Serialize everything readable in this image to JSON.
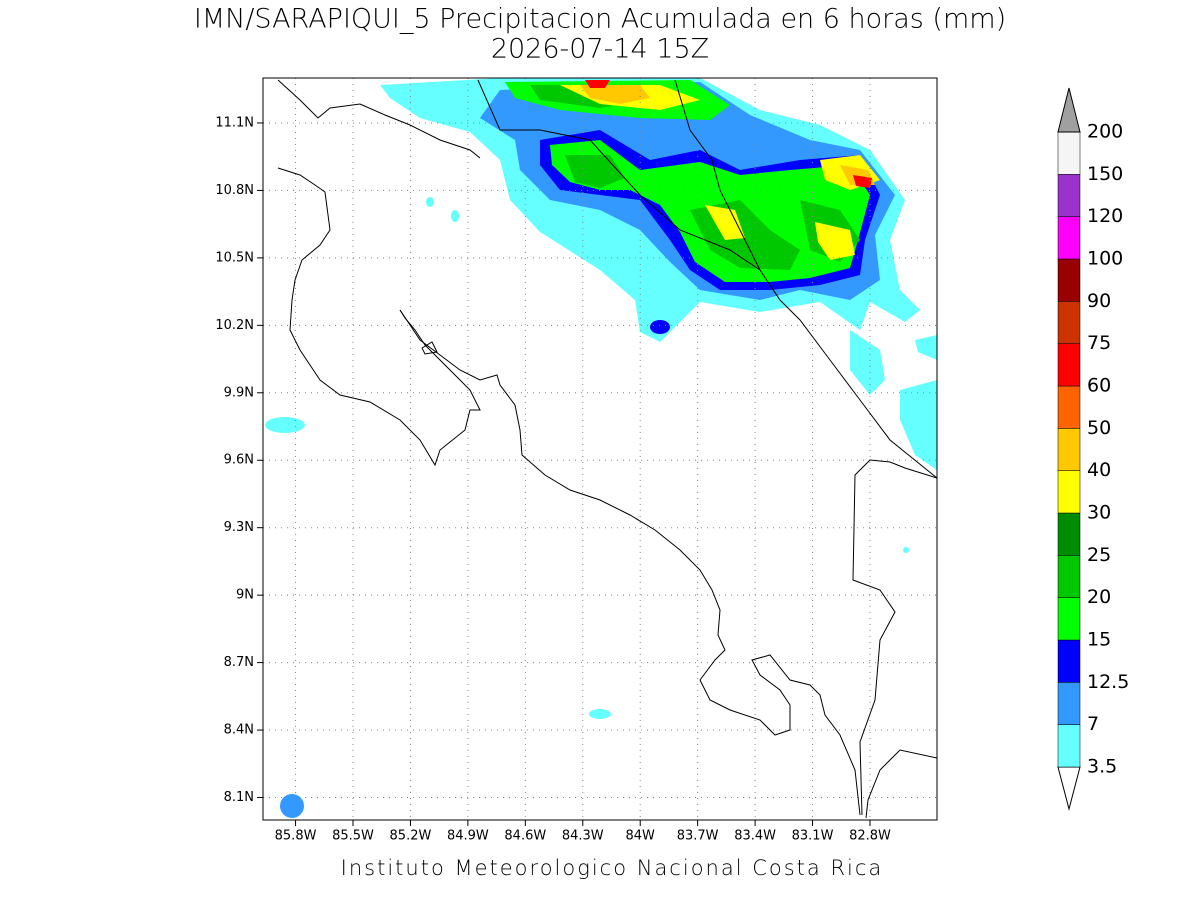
{
  "map": {
    "title": "IMN/SARAPIQUI_5 Precipitacion Acumulada en 6 horas (mm)",
    "subtitle": "2026-07-14 15Z",
    "footer": "Instituto Meteorologico Nacional Costa Rica",
    "xlim": [
      -85.97,
      -82.45
    ],
    "ylim": [
      8.0,
      11.3
    ],
    "grid": true,
    "xticks": [
      {
        "value": -85.8,
        "label": "85.8W"
      },
      {
        "value": -85.5,
        "label": "85.5W"
      },
      {
        "value": -85.2,
        "label": "85.2W"
      },
      {
        "value": -84.9,
        "label": "84.9W"
      },
      {
        "value": -84.6,
        "label": "84.6W"
      },
      {
        "value": -84.3,
        "label": "84.3W"
      },
      {
        "value": -84.0,
        "label": "84W"
      },
      {
        "value": -83.7,
        "label": "83.7W"
      },
      {
        "value": -83.4,
        "label": "83.4W"
      },
      {
        "value": -83.1,
        "label": "83.1W"
      },
      {
        "value": -82.8,
        "label": "82.8W"
      }
    ],
    "yticks": [
      {
        "value": 8.1,
        "label": "8.1N"
      },
      {
        "value": 8.4,
        "label": "8.4N"
      },
      {
        "value": 8.7,
        "label": "8.7N"
      },
      {
        "value": 9.0,
        "label": "9N"
      },
      {
        "value": 9.3,
        "label": "9.3N"
      },
      {
        "value": 9.6,
        "label": "9.6N"
      },
      {
        "value": 9.9,
        "label": "9.9N"
      },
      {
        "value": 10.2,
        "label": "10.2N"
      },
      {
        "value": 10.5,
        "label": "10.5N"
      },
      {
        "value": 10.8,
        "label": "10.8N"
      },
      {
        "value": 11.1,
        "label": "11.1N"
      }
    ],
    "colorbar": {
      "levels": [
        3.5,
        7,
        12.5,
        15,
        20,
        25,
        30,
        40,
        50,
        60,
        75,
        90,
        100,
        120,
        150,
        200
      ],
      "colors": [
        "#ffffff",
        "#66ffff",
        "#3399ff",
        "#0000ff",
        "#00ff00",
        "#00c800",
        "#008c00",
        "#ffff00",
        "#ffc800",
        "#ff6400",
        "#ff0000",
        "#cc3300",
        "#990000",
        "#ff00ff",
        "#9933cc",
        "#f5f5f5",
        "#a0a0a0"
      ]
    }
  }
}
